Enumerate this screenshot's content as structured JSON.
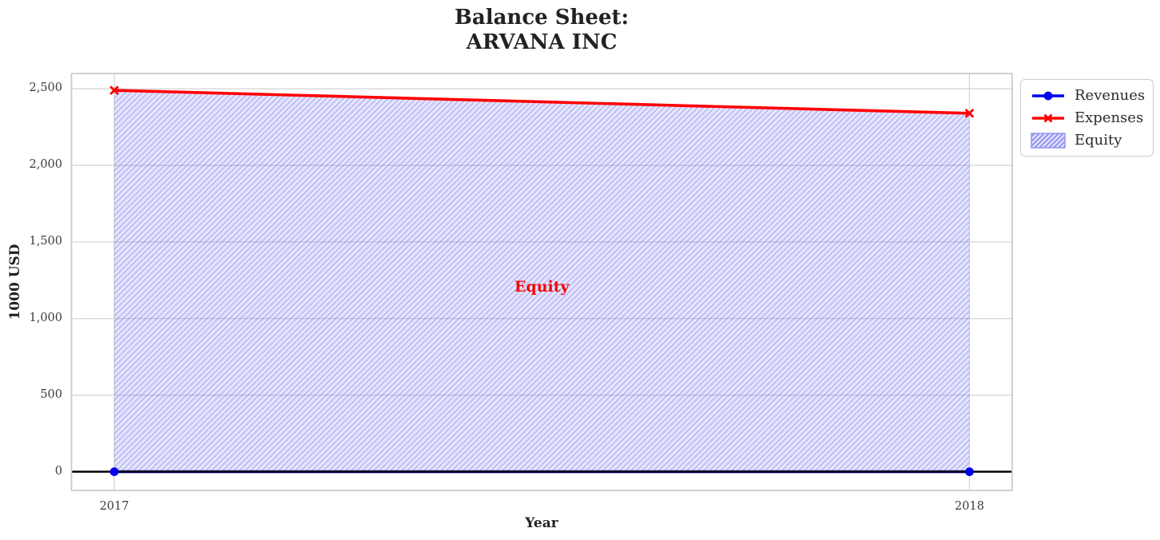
{
  "title": {
    "line1": "Balance Sheet:",
    "line2": "ARVANA INC"
  },
  "chart_data": {
    "type": "line",
    "title": "Balance Sheet:\nARVANA INC",
    "xlabel": "Year",
    "ylabel": "1000 USD",
    "x": [
      2017,
      2018
    ],
    "series": [
      {
        "name": "Revenues",
        "color": "#0000ee",
        "marker": "circle",
        "values": [
          0,
          0
        ]
      },
      {
        "name": "Expenses",
        "color": "#ff0000",
        "marker": "x",
        "values": [
          2490,
          2340
        ]
      }
    ],
    "area": {
      "name": "Equity",
      "between": [
        "Revenues",
        "Expenses"
      ],
      "fill_color": "rgba(42,42,235,0.105)",
      "hatch": "//",
      "hatch_color": "rgba(47,47,220,0.21)"
    },
    "annotation": {
      "text": "Equity",
      "color": "#ff0000",
      "x": 2017.5,
      "y": 1210
    },
    "zero_line_color": "#000000",
    "grid": true,
    "grid_color": "#d6d6d6",
    "spine_color": "#c9c9c9",
    "legend_position": "outside-top-right",
    "xlim": [
      2016.95,
      2018.05
    ],
    "ylim": [
      -122.5,
      2600
    ],
    "xticks": [
      {
        "value": 2017,
        "label": "2017"
      },
      {
        "value": 2018,
        "label": "2018"
      }
    ],
    "yticks": [
      {
        "value": 0,
        "label": "0"
      },
      {
        "value": 500,
        "label": "500"
      },
      {
        "value": 1000,
        "label": "1,000"
      },
      {
        "value": 1500,
        "label": "1,500"
      },
      {
        "value": 2000,
        "label": "2,000"
      },
      {
        "value": 2500,
        "label": "2,500"
      }
    ]
  }
}
